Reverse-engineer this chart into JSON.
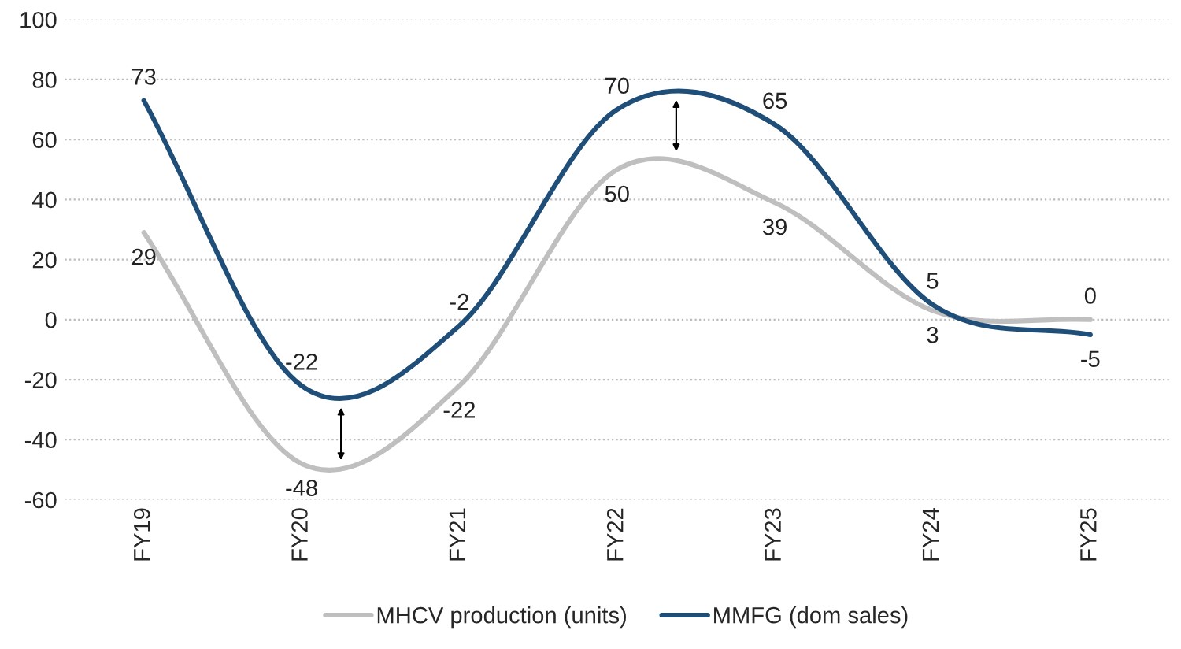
{
  "chart_data": {
    "type": "line",
    "categories": [
      "FY19",
      "FY20",
      "FY21",
      "FY22",
      "FY23",
      "FY24",
      "FY25"
    ],
    "series": [
      {
        "name": "MHCV production (units)",
        "color": "#bfbfbf",
        "values": [
          29,
          -48,
          -22,
          50,
          39,
          3,
          0
        ]
      },
      {
        "name": "MMFG (dom sales)",
        "color": "#1f4e79",
        "values": [
          73,
          -22,
          -2,
          70,
          65,
          5,
          -5
        ]
      }
    ],
    "ylim": [
      -60,
      100
    ],
    "yticks": [
      -60,
      -40,
      -20,
      0,
      20,
      40,
      60,
      80,
      100
    ],
    "grid": "y",
    "legend": "bottom",
    "data_labels": true
  }
}
